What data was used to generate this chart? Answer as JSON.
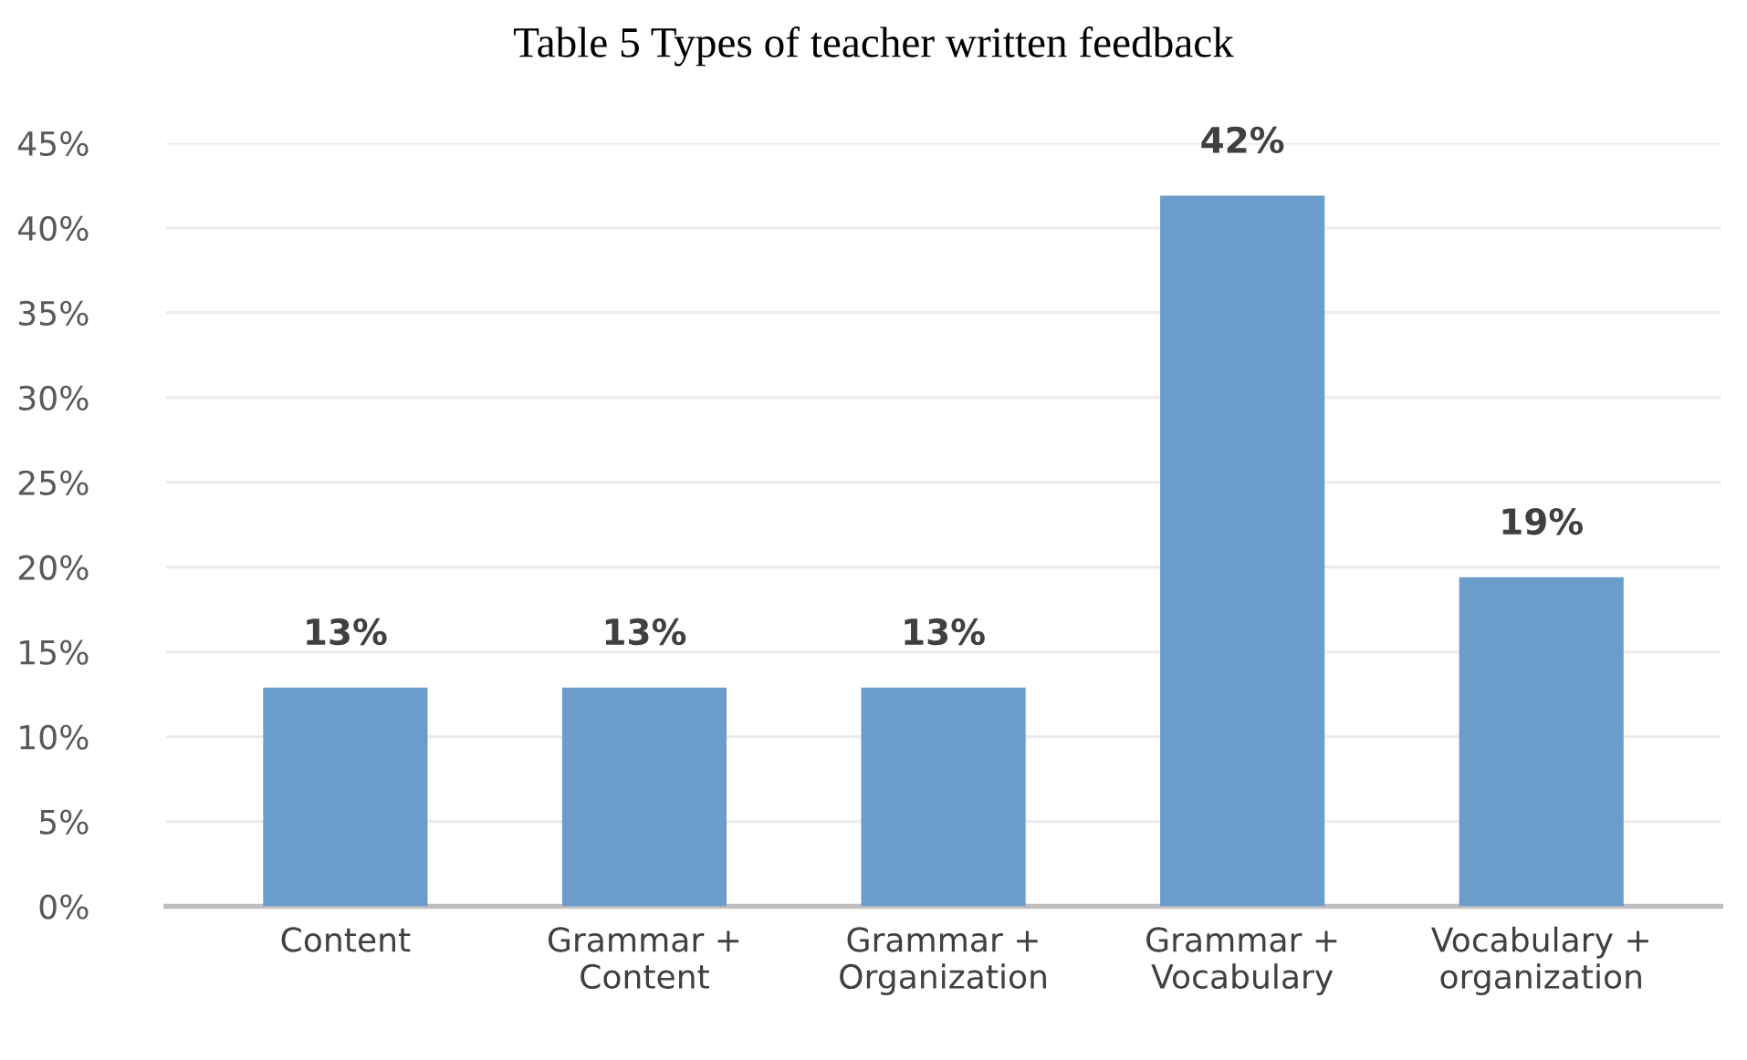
{
  "chart_data": {
    "type": "bar",
    "title": "Table 5 Types of teacher written feedback",
    "categories": [
      "Content",
      "Grammar +\nContent",
      "Grammar +\nOrganization",
      "Grammar +\nVocabulary",
      "Vocabulary +\norganization"
    ],
    "values": [
      12.9,
      12.9,
      12.9,
      41.9,
      19.4
    ],
    "value_labels": [
      "13%",
      "13%",
      "13%",
      "42%",
      "19%"
    ],
    "color": "#6b9dcc",
    "ylim": [
      0,
      45
    ],
    "yticks": [
      {
        "value": 0,
        "label": "0%"
      },
      {
        "value": 5,
        "label": "5%"
      },
      {
        "value": 10,
        "label": "10%"
      },
      {
        "value": 15,
        "label": "15%"
      },
      {
        "value": 20,
        "label": "20%"
      },
      {
        "value": 25,
        "label": "25%"
      },
      {
        "value": 30,
        "label": "30%"
      },
      {
        "value": 35,
        "label": "35%"
      },
      {
        "value": 40,
        "label": "40%"
      },
      {
        "value": 45,
        "label": "45%"
      }
    ],
    "grid": "y"
  }
}
